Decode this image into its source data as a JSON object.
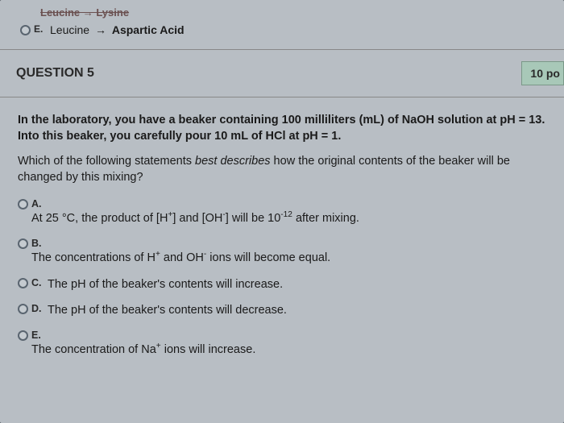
{
  "colors": {
    "page_bg": "#b8bec4",
    "outer_bg": "#3a4148",
    "badge_bg": "#a8c8b8",
    "badge_border": "#7a9888",
    "text": "#1a1a1a",
    "divider": "#888888"
  },
  "prev": {
    "struck_text": "Leucine → Lysine",
    "option_e": {
      "letter": "E.",
      "from": "Leucine",
      "arrow": "→",
      "to": "Aspartic Acid"
    }
  },
  "header": {
    "title": "QUESTION 5",
    "points": "10 po"
  },
  "question": {
    "prompt_line1": "In the laboratory, you have a beaker containing 100 milliliters (mL) of NaOH solution at pH = 13. Into this beaker, you carefully pour 10 mL of HCl at pH = 1.",
    "prompt_line2_a": "Which of the following statements ",
    "prompt_line2_italic": "best describes",
    "prompt_line2_b": " how the original contents of the beaker will be changed by this mixing?",
    "options": {
      "a": {
        "letter": "A.",
        "pre": "At 25 °C, the product of [H",
        "sup1": "+",
        "mid": "] and [OH",
        "sup2": "-",
        "mid2": "] will be 10",
        "exp": "-12",
        "post": " after mixing."
      },
      "b": {
        "letter": "B.",
        "pre": "The concentrations of H",
        "sup1": "+",
        "mid": " and OH",
        "sup2": "-",
        "post": " ions will become equal."
      },
      "c": {
        "letter": "C.",
        "text": "The pH of the beaker's contents will increase."
      },
      "d": {
        "letter": "D.",
        "text": "The pH of the beaker's contents will decrease."
      },
      "e": {
        "letter": "E.",
        "pre": "The concentration of Na",
        "sup1": "+",
        "post": " ions will increase."
      }
    }
  }
}
